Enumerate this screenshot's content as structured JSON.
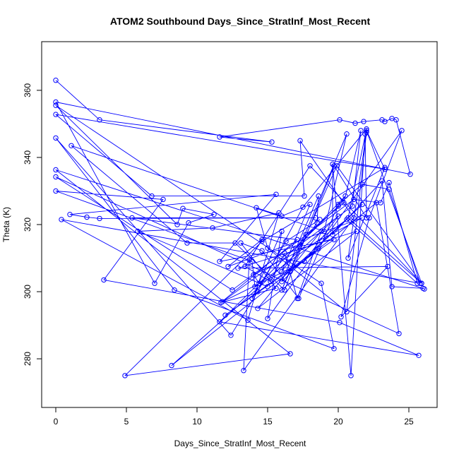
{
  "chart_data": {
    "type": "scatter",
    "title": "ATOM2 Southbound Days_Since_StratInf_Most_Recent",
    "xlabel": "Days_Since_StratInf_Most_Recent",
    "ylabel": "Theta (K)",
    "xlim": [
      -1,
      27
    ],
    "ylim": [
      265.5,
      374.5
    ],
    "xticks": [
      0,
      5,
      10,
      15,
      20,
      25
    ],
    "yticks": [
      280,
      300,
      320,
      340,
      360
    ],
    "grid": false,
    "legend": "none",
    "color": "#0000ff",
    "marker": "open-circle",
    "connected": true,
    "points": [
      [
        0.0,
        363.0
      ],
      [
        3.1,
        351.2
      ],
      [
        15.3,
        344.6
      ],
      [
        11.6,
        346.1
      ],
      [
        20.1,
        351.2
      ],
      [
        21.2,
        350.2
      ],
      [
        21.8,
        350.7
      ],
      [
        23.1,
        351.2
      ],
      [
        23.3,
        350.7
      ],
      [
        23.8,
        351.6
      ],
      [
        24.1,
        351.2
      ],
      [
        25.1,
        335.0
      ],
      [
        0.0,
        356.5
      ],
      [
        7.0,
        302.5
      ],
      [
        9.4,
        320.5
      ],
      [
        11.2,
        323.0
      ],
      [
        9.0,
        324.8
      ],
      [
        8.6,
        320.0
      ],
      [
        0.0,
        355.5
      ],
      [
        18.8,
        302.5
      ],
      [
        19.7,
        283.0
      ],
      [
        8.4,
        300.5
      ],
      [
        0.0,
        345.8
      ],
      [
        12.4,
        287.0
      ],
      [
        14.3,
        300.0
      ],
      [
        17.5,
        325.2
      ],
      [
        22.0,
        348.5
      ],
      [
        20.7,
        322.0
      ],
      [
        25.9,
        302.5
      ],
      [
        22.0,
        348.0
      ],
      [
        23.3,
        336.5
      ],
      [
        0.0,
        352.8
      ],
      [
        6.8,
        328.5
      ],
      [
        17.6,
        328.5
      ],
      [
        17.3,
        345.0
      ],
      [
        21.1,
        322.0
      ],
      [
        13.3,
        276.5
      ],
      [
        13.7,
        309.5
      ],
      [
        18.0,
        337.5
      ],
      [
        25.9,
        302.5
      ],
      [
        19.9,
        337.5
      ],
      [
        16.0,
        300.5
      ],
      [
        20.6,
        347.0
      ],
      [
        19.0,
        318.0
      ],
      [
        1.1,
        343.5
      ],
      [
        9.3,
        314.5
      ],
      [
        12.7,
        314.5
      ],
      [
        16.2,
        300.5
      ],
      [
        19.7,
        337.5
      ],
      [
        22.0,
        322.0
      ],
      [
        21.9,
        347.0
      ],
      [
        20.9,
        275.0
      ],
      [
        19.6,
        338.0
      ],
      [
        19.6,
        317.0
      ],
      [
        23.1,
        333.0
      ],
      [
        23.8,
        301.5
      ],
      [
        26.0,
        301.0
      ],
      [
        26.1,
        300.8
      ],
      [
        0.0,
        336.3
      ],
      [
        16.6,
        281.5
      ],
      [
        4.9,
        275.0
      ],
      [
        14.6,
        315.0
      ],
      [
        23.3,
        337.0
      ],
      [
        20.7,
        310.0
      ],
      [
        22.0,
        347.5
      ],
      [
        20.6,
        294.0
      ],
      [
        15.0,
        313.0
      ],
      [
        14.2,
        325.0
      ],
      [
        16.0,
        322.5
      ],
      [
        18.0,
        326.0
      ],
      [
        16.0,
        306.0
      ],
      [
        18.5,
        320.5
      ],
      [
        18.6,
        328.5
      ],
      [
        16.0,
        303.0
      ],
      [
        21.7,
        326.0
      ],
      [
        16.6,
        306.0
      ],
      [
        22.7,
        326.5
      ],
      [
        24.3,
        287.5
      ],
      [
        0.0,
        334.2
      ],
      [
        12.5,
        300.5
      ],
      [
        21.1,
        327.5
      ],
      [
        23.0,
        326.5
      ],
      [
        23.6,
        332.5
      ],
      [
        25.6,
        302.5
      ],
      [
        20.6,
        321.5
      ],
      [
        14.1,
        301.5
      ],
      [
        13.9,
        309.0
      ],
      [
        0.0,
        330.0
      ],
      [
        7.6,
        327.5
      ],
      [
        3.4,
        303.5
      ],
      [
        20.1,
        290.8
      ],
      [
        25.7,
        281.0
      ],
      [
        11.6,
        291.0
      ],
      [
        20.0,
        325.5
      ],
      [
        20.5,
        328.5
      ],
      [
        17.0,
        313.0
      ],
      [
        17.7,
        317.0
      ],
      [
        20.4,
        326.5
      ],
      [
        21.6,
        348.0
      ],
      [
        21.0,
        325.5
      ],
      [
        11.8,
        297.0
      ],
      [
        17.6,
        309.0
      ],
      [
        20.0,
        322.5
      ],
      [
        8.2,
        278.0
      ],
      [
        18.6,
        312.8
      ],
      [
        12.0,
        293.0
      ],
      [
        19.7,
        315.5
      ],
      [
        11.6,
        309.0
      ],
      [
        15.6,
        329.0
      ],
      [
        1.0,
        323.0
      ],
      [
        2.2,
        322.2
      ],
      [
        3.1,
        321.8
      ],
      [
        18.4,
        322.0
      ],
      [
        5.4,
        322.0
      ],
      [
        17.1,
        315.5
      ],
      [
        11.7,
        296.8
      ],
      [
        15.6,
        301.0
      ],
      [
        13.1,
        314.5
      ],
      [
        14.6,
        312.2
      ],
      [
        17.2,
        298.0
      ],
      [
        20.0,
        326.0
      ],
      [
        21.7,
        332.0
      ],
      [
        23.6,
        330.5
      ],
      [
        25.8,
        302.5
      ],
      [
        0.4,
        321.5
      ],
      [
        13.6,
        291.5
      ],
      [
        15.8,
        323.5
      ],
      [
        11.1,
        319.0
      ],
      [
        5.8,
        318.0
      ],
      [
        15.0,
        301.5
      ],
      [
        14.4,
        302.5
      ],
      [
        14.0,
        305.0
      ],
      [
        21.7,
        322.0
      ],
      [
        12.2,
        307.5
      ],
      [
        14.6,
        315.5
      ],
      [
        13.4,
        307.5
      ],
      [
        15.2,
        303.0
      ],
      [
        16.2,
        311.5
      ],
      [
        17.1,
        298.0
      ],
      [
        18.8,
        318.0
      ],
      [
        14.3,
        295.0
      ],
      [
        21.3,
        318.0
      ],
      [
        12.9,
        307.0
      ],
      [
        23.5,
        307.5
      ],
      [
        20.2,
        292.5
      ],
      [
        22.2,
        322.0
      ],
      [
        24.5,
        348.0
      ],
      [
        15.0,
        292.0
      ],
      [
        16.0,
        318.0
      ],
      [
        13.9,
        298.0
      ],
      [
        16.3,
        315.0
      ],
      [
        18.7,
        321.5
      ]
    ]
  }
}
